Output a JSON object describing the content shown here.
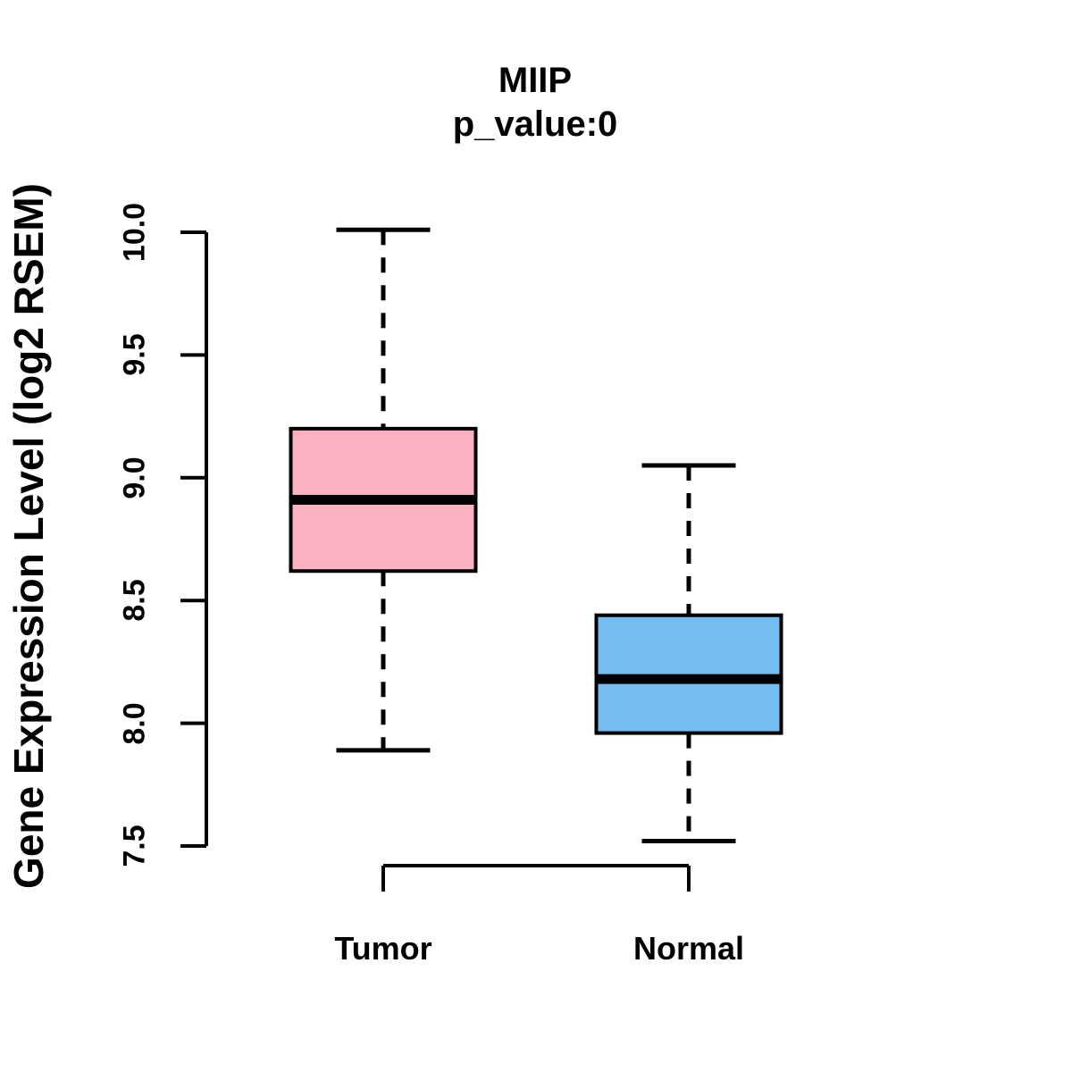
{
  "chart_data": {
    "type": "boxplot",
    "title": "MIIP",
    "subtitle": "p_value:0",
    "ylabel": "Gene Expression Level (log2 RSEM)",
    "xlabel": "",
    "ylim": [
      7.5,
      10.0
    ],
    "y_ticks": [
      7.5,
      8.0,
      8.5,
      9.0,
      9.5,
      10.0
    ],
    "y_tick_labels": [
      "7.5",
      "8.0",
      "8.5",
      "9.0",
      "9.5",
      "10.0"
    ],
    "grid": false,
    "legend": "none",
    "categories": [
      "Tumor",
      "Normal"
    ],
    "series": [
      {
        "name": "Tumor",
        "box_fill": "#FCB1C3",
        "whisker_low": 7.89,
        "q1": 8.62,
        "median": 8.91,
        "q3": 9.2,
        "whisker_high": 10.01
      },
      {
        "name": "Normal",
        "box_fill": "#75BCF2",
        "whisker_low": 7.52,
        "q1": 7.96,
        "median": 8.18,
        "q3": 8.44,
        "whisker_high": 9.05
      }
    ],
    "line_color": "#000000",
    "whisker_style": "dashed"
  }
}
